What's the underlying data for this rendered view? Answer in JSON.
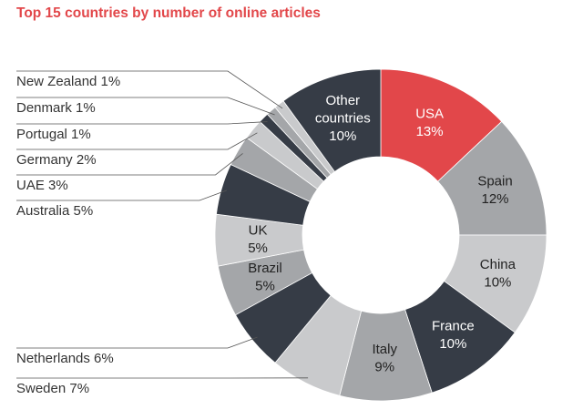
{
  "chart_data": {
    "type": "pie",
    "title": "Top 15 countries by number of online articles",
    "donut": true,
    "colors": {
      "accent": "#e2474a",
      "dark": "#363c46",
      "medium": "#a4a6a9",
      "light": "#c9cacc",
      "leader": "#555555",
      "label_dark": "#333333"
    },
    "slices": [
      {
        "label": "USA",
        "value_label": "13%",
        "value": 13,
        "color": "#e2474a",
        "text_color": "#ffffff"
      },
      {
        "label": "Spain",
        "value_label": "12%",
        "value": 12,
        "color": "#a4a6a9",
        "text_color": "#222222"
      },
      {
        "label": "China",
        "value_label": "10%",
        "value": 10,
        "color": "#c9cacc",
        "text_color": "#222222"
      },
      {
        "label": "France",
        "value_label": "10%",
        "value": 10,
        "color": "#363c46",
        "text_color": "#ffffff"
      },
      {
        "label": "Italy",
        "value_label": "9%",
        "value": 9,
        "color": "#a4a6a9",
        "text_color": "#222222"
      },
      {
        "label": "Sweden",
        "value_label": "7%",
        "value": 7,
        "color": "#c9cacc",
        "text_color": "#222222"
      },
      {
        "label": "Netherlands",
        "value_label": "6%",
        "value": 6,
        "color": "#363c46",
        "text_color": "#ffffff"
      },
      {
        "label": "Brazil",
        "value_label": "5%",
        "value": 5,
        "color": "#a4a6a9",
        "text_color": "#222222"
      },
      {
        "label": "UK",
        "value_label": "5%",
        "value": 5,
        "color": "#c9cacc",
        "text_color": "#222222"
      },
      {
        "label": "Australia",
        "value_label": "5%",
        "value": 5,
        "color": "#363c46",
        "text_color": "#ffffff"
      },
      {
        "label": "UAE",
        "value_label": "3%",
        "value": 3,
        "color": "#a4a6a9",
        "text_color": "#222222"
      },
      {
        "label": "Germany",
        "value_label": "2%",
        "value": 2,
        "color": "#c9cacc",
        "text_color": "#222222"
      },
      {
        "label": "Portugal",
        "value_label": "1%",
        "value": 1,
        "color": "#363c46",
        "text_color": "#ffffff"
      },
      {
        "label": "Denmark",
        "value_label": "1%",
        "value": 1,
        "color": "#a4a6a9",
        "text_color": "#222222"
      },
      {
        "label": "New Zealand",
        "value_label": "1%",
        "value": 1,
        "color": "#c9cacc",
        "text_color": "#222222"
      },
      {
        "label": "Other countries",
        "value_label": "10%",
        "value": 10,
        "color": "#363c46",
        "text_color": "#ffffff"
      }
    ],
    "inside_labels": [
      "USA",
      "Spain",
      "China",
      "France",
      "Italy",
      "Brazil",
      "UK",
      "Other countries"
    ],
    "callout_labels": [
      {
        "text": "New Zealand 1%",
        "slice": "New Zealand"
      },
      {
        "text": "Denmark 1%",
        "slice": "Denmark"
      },
      {
        "text": "Portugal 1%",
        "slice": "Portugal"
      },
      {
        "text": "Germany 2%",
        "slice": "Germany"
      },
      {
        "text": "UAE 3%",
        "slice": "UAE"
      },
      {
        "text": "Australia 5%",
        "slice": "Australia"
      },
      {
        "text": "Netherlands 6%",
        "slice": "Netherlands"
      },
      {
        "text": "Sweden 7%",
        "slice": "Sweden"
      }
    ]
  }
}
